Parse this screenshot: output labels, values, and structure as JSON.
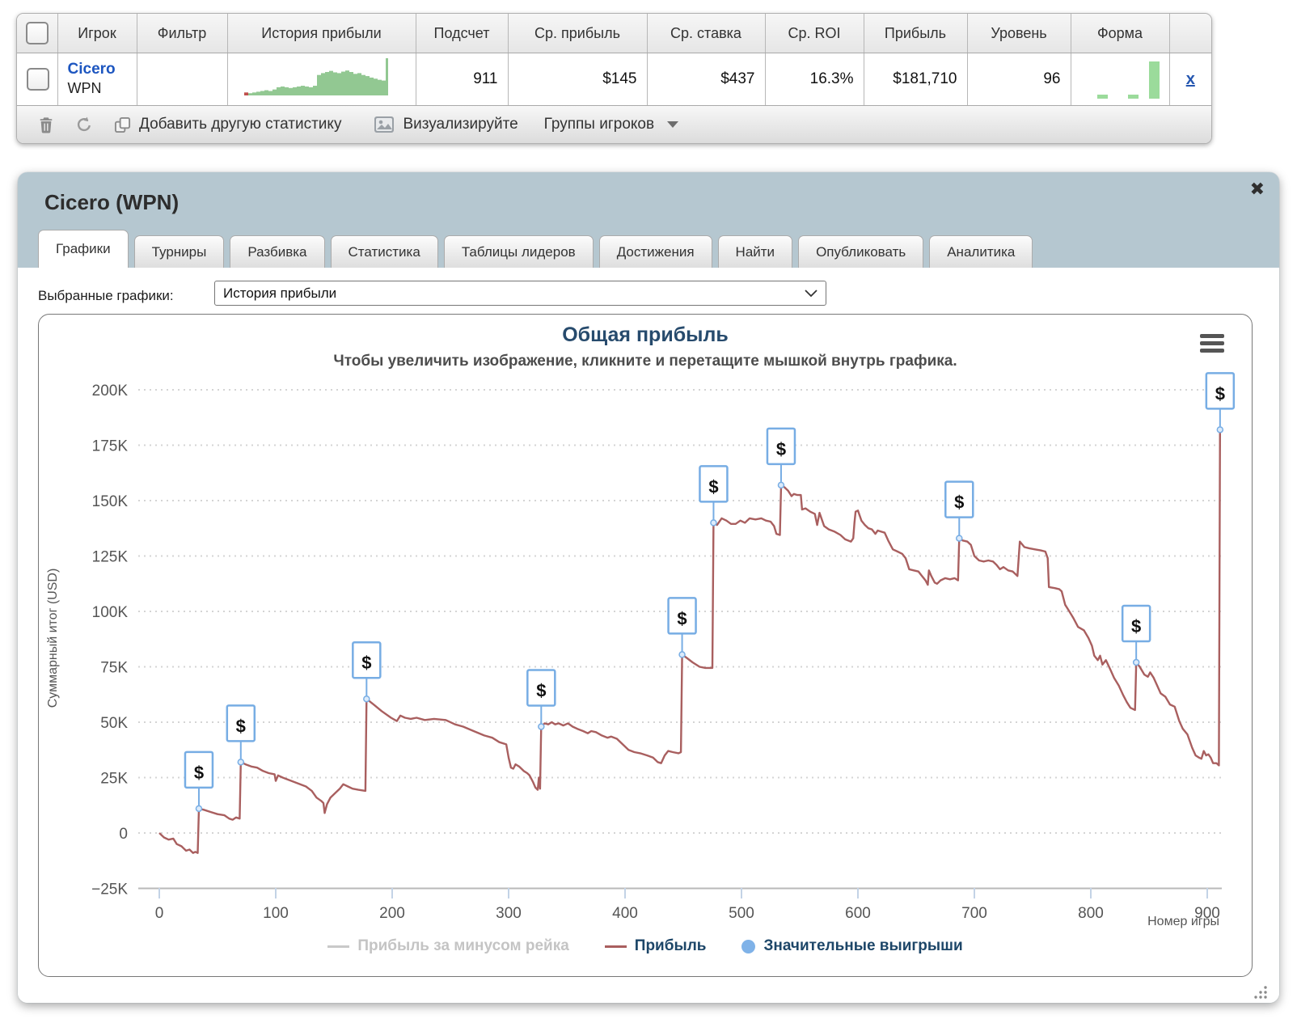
{
  "table": {
    "headers": [
      "Игрок",
      "Фильтр",
      "История прибыли",
      "Подсчет",
      "Ср. прибыль",
      "Ср. ставка",
      "Ср. ROI",
      "Прибыль",
      "Уровень",
      "Форма"
    ],
    "row": {
      "player": "Cicero",
      "network": "WPN",
      "count": "911",
      "avg_profit": "$145",
      "avg_stake": "$437",
      "avg_roi": "16.3%",
      "profit": "$181,710",
      "level": "96",
      "remove_label": "x"
    },
    "sparkline": {
      "color": "#92c892",
      "negative_color": "#c0504d",
      "heights": [
        -0.08,
        0.06,
        0.08,
        0.1,
        0.12,
        0.14,
        0.12,
        0.16,
        0.22,
        0.24,
        0.22,
        0.2,
        0.22,
        0.24,
        0.26,
        0.24,
        0.22,
        0.26,
        0.55,
        0.6,
        0.63,
        0.66,
        0.62,
        0.6,
        0.64,
        0.67,
        0.63,
        0.58,
        0.6,
        0.55,
        0.52,
        0.48,
        0.45,
        0.42,
        0.4,
        1.0
      ]
    },
    "form": {
      "color": "#9bdb9b",
      "bars": [
        {
          "x": 20,
          "h": 5
        },
        {
          "x": 58,
          "h": 5
        },
        {
          "x": 84,
          "h": 46
        }
      ]
    }
  },
  "toolbar": {
    "add_statistic": "Добавить другую статистику",
    "visualize": "Визуализируйте",
    "player_groups": "Группы игроков"
  },
  "panel": {
    "title": "Cicero (WPN)",
    "close": "✖",
    "tabs": [
      {
        "label": "Графики",
        "active": true
      },
      {
        "label": "Турниры",
        "active": false
      },
      {
        "label": "Разбивка",
        "active": false
      },
      {
        "label": "Статистика",
        "active": false
      },
      {
        "label": "Таблицы лидеров",
        "active": false
      },
      {
        "label": "Достижения",
        "active": false
      },
      {
        "label": "Найти",
        "active": false
      },
      {
        "label": "Опубликовать",
        "active": false
      },
      {
        "label": "Аналитика",
        "active": false
      }
    ],
    "select_label": "Выбранные графики:",
    "select_value": "История прибыли"
  },
  "chart_data": {
    "type": "line",
    "title": "Общая прибыль",
    "subtitle": "Чтобы увеличить изображение, кликните и перетащите мышкой внутрь графика.",
    "ylabel": "Суммарный итог (USD)",
    "xlabel": "Номер игры",
    "ylim": [
      -25000,
      200000
    ],
    "xlim": [
      0,
      930
    ],
    "grid": true,
    "legend_position": "bottom",
    "y_ticks": [
      {
        "v": 200,
        "label": "200K"
      },
      {
        "v": 175,
        "label": "175K"
      },
      {
        "v": 150,
        "label": "150K"
      },
      {
        "v": 125,
        "label": "125K"
      },
      {
        "v": 100,
        "label": "100K"
      },
      {
        "v": 75,
        "label": "75K"
      },
      {
        "v": 50,
        "label": "50K"
      },
      {
        "v": 25,
        "label": "25K"
      },
      {
        "v": 0,
        "label": "0"
      },
      {
        "v": -25,
        "label": "−25K"
      }
    ],
    "x_ticks": [
      {
        "v": 0,
        "label": "0"
      },
      {
        "v": 100,
        "label": "100"
      },
      {
        "v": 200,
        "label": "200"
      },
      {
        "v": 300,
        "label": "300"
      },
      {
        "v": 400,
        "label": "400"
      },
      {
        "v": 500,
        "label": "500"
      },
      {
        "v": 600,
        "label": "600"
      },
      {
        "v": 700,
        "label": "700"
      },
      {
        "v": 800,
        "label": "800"
      },
      {
        "v": 900,
        "label": "900"
      }
    ],
    "series": [
      {
        "name": "Прибыль",
        "color": "#a95f5f",
        "units": "thousand USD",
        "points": [
          [
            0,
            0
          ],
          [
            4,
            -2
          ],
          [
            8,
            -3
          ],
          [
            12,
            -2.5
          ],
          [
            15,
            -5
          ],
          [
            19,
            -6
          ],
          [
            23,
            -8
          ],
          [
            26,
            -7.5
          ],
          [
            29,
            -9
          ],
          [
            31,
            -8.5
          ],
          [
            33,
            -9
          ],
          [
            34,
            11
          ],
          [
            38,
            10.5
          ],
          [
            44,
            9.5
          ],
          [
            50,
            8.5
          ],
          [
            56,
            8
          ],
          [
            60,
            6.5
          ],
          [
            63,
            6
          ],
          [
            66,
            7
          ],
          [
            69,
            6.5
          ],
          [
            70,
            32
          ],
          [
            74,
            31
          ],
          [
            79,
            30
          ],
          [
            84,
            29.5
          ],
          [
            89,
            28
          ],
          [
            94,
            27
          ],
          [
            99,
            26.5
          ],
          [
            100,
            23.5
          ],
          [
            102,
            26
          ],
          [
            106,
            25
          ],
          [
            111,
            24
          ],
          [
            116,
            23
          ],
          [
            121,
            22
          ],
          [
            126,
            21
          ],
          [
            131,
            19
          ],
          [
            135,
            16
          ],
          [
            139,
            14.5
          ],
          [
            141,
            13.5
          ],
          [
            142,
            9
          ],
          [
            144,
            13
          ],
          [
            147,
            16
          ],
          [
            151,
            18
          ],
          [
            155,
            20
          ],
          [
            158,
            22
          ],
          [
            162,
            21
          ],
          [
            166,
            20
          ],
          [
            171,
            19.5
          ],
          [
            177,
            19
          ],
          [
            178,
            60.5
          ],
          [
            184,
            58
          ],
          [
            191,
            55
          ],
          [
            199,
            52
          ],
          [
            204,
            50.5
          ],
          [
            207,
            53
          ],
          [
            211,
            52
          ],
          [
            216,
            51.5
          ],
          [
            221,
            52
          ],
          [
            228,
            51
          ],
          [
            236,
            51.5
          ],
          [
            246,
            51
          ],
          [
            254,
            49
          ],
          [
            261,
            48
          ],
          [
            270,
            46
          ],
          [
            279,
            44
          ],
          [
            286,
            43
          ],
          [
            292,
            41
          ],
          [
            298,
            40
          ],
          [
            300,
            34
          ],
          [
            302,
            29.5
          ],
          [
            304,
            29
          ],
          [
            306,
            31
          ],
          [
            309,
            30
          ],
          [
            313,
            28
          ],
          [
            316,
            27
          ],
          [
            318,
            26
          ],
          [
            321,
            23
          ],
          [
            323,
            20.5
          ],
          [
            325,
            19.5
          ],
          [
            326,
            25
          ],
          [
            327,
            20
          ],
          [
            328,
            48
          ],
          [
            331,
            49.5
          ],
          [
            334,
            49
          ],
          [
            337,
            50
          ],
          [
            340,
            49
          ],
          [
            343,
            49.5
          ],
          [
            347,
            48.5
          ],
          [
            351,
            49.5
          ],
          [
            355,
            48
          ],
          [
            359,
            47
          ],
          [
            364,
            46
          ],
          [
            368,
            45
          ],
          [
            371,
            46
          ],
          [
            375,
            45.5
          ],
          [
            380,
            44
          ],
          [
            385,
            43
          ],
          [
            388,
            43.5
          ],
          [
            393,
            42.5
          ],
          [
            398,
            40
          ],
          [
            403,
            37.5
          ],
          [
            408,
            36.5
          ],
          [
            413,
            36
          ],
          [
            419,
            35
          ],
          [
            424,
            34
          ],
          [
            428,
            32
          ],
          [
            431,
            31.5
          ],
          [
            434,
            35
          ],
          [
            437,
            37
          ],
          [
            441,
            36.5
          ],
          [
            446,
            36
          ],
          [
            448,
            36.5
          ],
          [
            449,
            80.5
          ],
          [
            453,
            79
          ],
          [
            458,
            77
          ],
          [
            464,
            75
          ],
          [
            469,
            74.5
          ],
          [
            475,
            74.5
          ],
          [
            476,
            140
          ],
          [
            479,
            139
          ],
          [
            483,
            142
          ],
          [
            487,
            141
          ],
          [
            491,
            139.5
          ],
          [
            495,
            139.5
          ],
          [
            499,
            141
          ],
          [
            503,
            140
          ],
          [
            507,
            142
          ],
          [
            512,
            141.5
          ],
          [
            517,
            142
          ],
          [
            521,
            141
          ],
          [
            525,
            140.5
          ],
          [
            528,
            138.5
          ],
          [
            530,
            135
          ],
          [
            533,
            134.5
          ],
          [
            534,
            157
          ],
          [
            537,
            156
          ],
          [
            540,
            154.5
          ],
          [
            543,
            152
          ],
          [
            545,
            153
          ],
          [
            548,
            152.5
          ],
          [
            551,
            152.5
          ],
          [
            552,
            146
          ],
          [
            555,
            146.5
          ],
          [
            559,
            145
          ],
          [
            563,
            144
          ],
          [
            565,
            139
          ],
          [
            567,
            144.5
          ],
          [
            571,
            138.5
          ],
          [
            575,
            137
          ],
          [
            580,
            136
          ],
          [
            585,
            134.5
          ],
          [
            589,
            132.5
          ],
          [
            594,
            131.5
          ],
          [
            596,
            133
          ],
          [
            597,
            140
          ],
          [
            598,
            145
          ],
          [
            600,
            145.5
          ],
          [
            603,
            141
          ],
          [
            606,
            139
          ],
          [
            609,
            137.5
          ],
          [
            612,
            137
          ],
          [
            615,
            135
          ],
          [
            617,
            136.5
          ],
          [
            620,
            136
          ],
          [
            623,
            135.5
          ],
          [
            626,
            132
          ],
          [
            630,
            128
          ],
          [
            634,
            127
          ],
          [
            638,
            126
          ],
          [
            641,
            124
          ],
          [
            644,
            119
          ],
          [
            648,
            118.5
          ],
          [
            652,
            118
          ],
          [
            655,
            116
          ],
          [
            658,
            114
          ],
          [
            660,
            112
          ],
          [
            661,
            118.5
          ],
          [
            663,
            116
          ],
          [
            666,
            113
          ],
          [
            668,
            112.5
          ],
          [
            671,
            114
          ],
          [
            675,
            115
          ],
          [
            679,
            114.5
          ],
          [
            683,
            115
          ],
          [
            686,
            114
          ],
          [
            687,
            133
          ],
          [
            690,
            132
          ],
          [
            694,
            131.5
          ],
          [
            697,
            130
          ],
          [
            700,
            125
          ],
          [
            704,
            123
          ],
          [
            708,
            122.5
          ],
          [
            712,
            123
          ],
          [
            716,
            122.5
          ],
          [
            719,
            121
          ],
          [
            722,
            119
          ],
          [
            725,
            120
          ],
          [
            729,
            118.5
          ],
          [
            733,
            118
          ],
          [
            737,
            116
          ],
          [
            739,
            131.5
          ],
          [
            743,
            129
          ],
          [
            747,
            128.5
          ],
          [
            752,
            128
          ],
          [
            757,
            127.5
          ],
          [
            761,
            127
          ],
          [
            763,
            124
          ],
          [
            764,
            111
          ],
          [
            769,
            110.5
          ],
          [
            773,
            110
          ],
          [
            775,
            109
          ],
          [
            778,
            103
          ],
          [
            781,
            100.5
          ],
          [
            785,
            97
          ],
          [
            789,
            93
          ],
          [
            794,
            91.5
          ],
          [
            798,
            88
          ],
          [
            801,
            84.5
          ],
          [
            803,
            80
          ],
          [
            806,
            78
          ],
          [
            808,
            80
          ],
          [
            810,
            76
          ],
          [
            813,
            78
          ],
          [
            817,
            73.5
          ],
          [
            820,
            70
          ],
          [
            824,
            66.5
          ],
          [
            828,
            62
          ],
          [
            831,
            59
          ],
          [
            834,
            56.5
          ],
          [
            838,
            55.5
          ],
          [
            839,
            77
          ],
          [
            842,
            75
          ],
          [
            846,
            71.5
          ],
          [
            849,
            70.5
          ],
          [
            851,
            72.5
          ],
          [
            854,
            70
          ],
          [
            857,
            66.5
          ],
          [
            860,
            63
          ],
          [
            864,
            61.5
          ],
          [
            868,
            58
          ],
          [
            872,
            57
          ],
          [
            876,
            50.5
          ],
          [
            879,
            47
          ],
          [
            883,
            44.5
          ],
          [
            887,
            38.5
          ],
          [
            890,
            35
          ],
          [
            893,
            34
          ],
          [
            895,
            33.5
          ],
          [
            897,
            37
          ],
          [
            899,
            35
          ],
          [
            901,
            35.5
          ],
          [
            903,
            34
          ],
          [
            905,
            31.5
          ],
          [
            908,
            31.5
          ],
          [
            910,
            30.5
          ],
          [
            911,
            182
          ]
        ]
      }
    ],
    "significant_wins": [
      [
        34,
        11
      ],
      [
        70,
        32
      ],
      [
        178,
        60.5
      ],
      [
        328,
        48
      ],
      [
        449,
        80.5
      ],
      [
        476,
        140
      ],
      [
        534,
        157
      ],
      [
        687,
        133
      ],
      [
        839,
        77
      ],
      [
        911,
        182
      ]
    ],
    "marker_symbol": "$",
    "marker_color": "#77ade4",
    "legend": [
      {
        "label": "Прибыль за минусом рейка",
        "type": "line",
        "color": "#c9c9c9",
        "text_color": "#c4c4c4",
        "disabled": true
      },
      {
        "label": "Прибыль",
        "type": "line",
        "color": "#a95f5f",
        "text_color": "#1d4668",
        "disabled": false
      },
      {
        "label": "Значительные выигрыши",
        "type": "marker",
        "color": "#7fb2e8",
        "text_color": "#1d4668",
        "disabled": false
      }
    ]
  }
}
